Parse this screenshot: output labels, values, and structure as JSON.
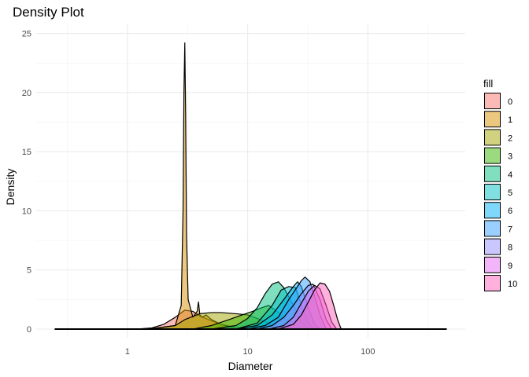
{
  "chart_data": {
    "type": "area",
    "title": "Density Plot",
    "xlabel": "Diameter",
    "ylabel": "Density",
    "x_scale": "log10",
    "xlim": [
      0.25,
      450
    ],
    "ylim": [
      0,
      25.3
    ],
    "x_ticks": [
      1,
      10,
      100
    ],
    "x_tick_labels": [
      "1",
      "10",
      "100"
    ],
    "y_ticks": [
      0,
      5,
      10,
      15,
      20,
      25
    ],
    "y_tick_labels": [
      "0",
      "5",
      "10",
      "15",
      "20",
      "25"
    ],
    "grid": true,
    "legend": {
      "title": "fill",
      "position": "right"
    },
    "series": [
      {
        "name": "0",
        "color": "#F8766D",
        "x": [
          0.25,
          1.2,
          1.6,
          2.0,
          2.5,
          3.0,
          3.5,
          4.0,
          5.0,
          6.0,
          8.0,
          10,
          450
        ],
        "y": [
          0,
          0,
          0.1,
          0.4,
          1.0,
          1.6,
          1.5,
          1.1,
          0.7,
          0.4,
          0.15,
          0,
          0
        ]
      },
      {
        "name": "1",
        "color": "#D89000",
        "x": [
          0.25,
          1.5,
          2.5,
          2.8,
          2.9,
          2.95,
          3.0,
          3.05,
          3.1,
          3.2,
          3.5,
          3.8,
          3.9,
          4.0,
          4.2,
          4.5,
          5.0,
          6.0,
          7.0,
          8.0,
          450
        ],
        "y": [
          0,
          0,
          0.3,
          2.0,
          10.0,
          20.0,
          24.2,
          18.0,
          8.0,
          2.5,
          1.0,
          1.5,
          2.3,
          1.2,
          1.0,
          1.2,
          0.8,
          0.4,
          0.2,
          0,
          0
        ]
      },
      {
        "name": "2",
        "color": "#A3A500",
        "x": [
          0.25,
          1.5,
          2.5,
          3.0,
          4.0,
          5.0,
          6.0,
          8.0,
          10,
          12,
          15,
          18,
          22,
          450
        ],
        "y": [
          0,
          0,
          0.3,
          0.8,
          1.3,
          1.4,
          1.4,
          1.3,
          1.2,
          0.9,
          0.5,
          0.2,
          0,
          0
        ]
      },
      {
        "name": "3",
        "color": "#39B600",
        "x": [
          0.25,
          3.5,
          5.0,
          7.0,
          9.0,
          11,
          13,
          15,
          18,
          22,
          26,
          30,
          450
        ],
        "y": [
          0,
          0,
          0.3,
          0.8,
          1.2,
          1.5,
          1.8,
          2.0,
          1.4,
          0.6,
          0.2,
          0,
          0
        ]
      },
      {
        "name": "4",
        "color": "#00BF7D",
        "x": [
          0.25,
          5.0,
          8.0,
          10,
          12,
          14,
          16,
          18,
          20,
          24,
          28,
          32,
          450
        ],
        "y": [
          0,
          0,
          0.3,
          0.9,
          1.8,
          3.0,
          3.8,
          4.0,
          3.5,
          2.0,
          0.6,
          0,
          0
        ]
      },
      {
        "name": "5",
        "color": "#00BFC4",
        "x": [
          0.25,
          8.0,
          12,
          16,
          19,
          22,
          25,
          28,
          32,
          36,
          450
        ],
        "y": [
          0,
          0,
          0.5,
          2.0,
          3.3,
          3.6,
          3.5,
          2.0,
          0.5,
          0,
          0
        ]
      },
      {
        "name": "6",
        "color": "#00B0F6",
        "x": [
          0.25,
          8.0,
          12,
          16,
          20,
          24,
          26,
          28,
          32,
          36,
          40,
          450
        ],
        "y": [
          0,
          0,
          0.3,
          1.2,
          2.5,
          3.6,
          4.0,
          3.6,
          1.8,
          0.4,
          0,
          0
        ]
      },
      {
        "name": "7",
        "color": "#35A2FF",
        "x": [
          0.25,
          10,
          14,
          18,
          22,
          26,
          28,
          30,
          33,
          36,
          40,
          45,
          450
        ],
        "y": [
          0,
          0,
          0.3,
          1.0,
          2.5,
          3.6,
          4.1,
          4.4,
          4.0,
          2.8,
          1.2,
          0,
          0
        ]
      },
      {
        "name": "8",
        "color": "#9590FF",
        "x": [
          0.25,
          12,
          16,
          20,
          24,
          28,
          32,
          35,
          40,
          45,
          50,
          450
        ],
        "y": [
          0,
          0,
          0.3,
          1.0,
          2.0,
          3.0,
          3.7,
          3.8,
          2.5,
          0.8,
          0,
          0
        ]
      },
      {
        "name": "9",
        "color": "#E76BF3",
        "x": [
          0.25,
          15,
          20,
          24,
          28,
          32,
          36,
          40,
          45,
          50,
          55,
          450
        ],
        "y": [
          0,
          0,
          0.3,
          1.0,
          2.2,
          3.2,
          3.7,
          3.4,
          2.0,
          0.6,
          0,
          0
        ]
      },
      {
        "name": "10",
        "color": "#FF62BC",
        "x": [
          0.25,
          18,
          24,
          28,
          32,
          36,
          40,
          44,
          48,
          52,
          56,
          60,
          450
        ],
        "y": [
          0,
          0,
          0.4,
          1.2,
          2.3,
          3.3,
          3.9,
          3.8,
          3.2,
          2.0,
          0.8,
          0,
          0
        ]
      }
    ]
  }
}
